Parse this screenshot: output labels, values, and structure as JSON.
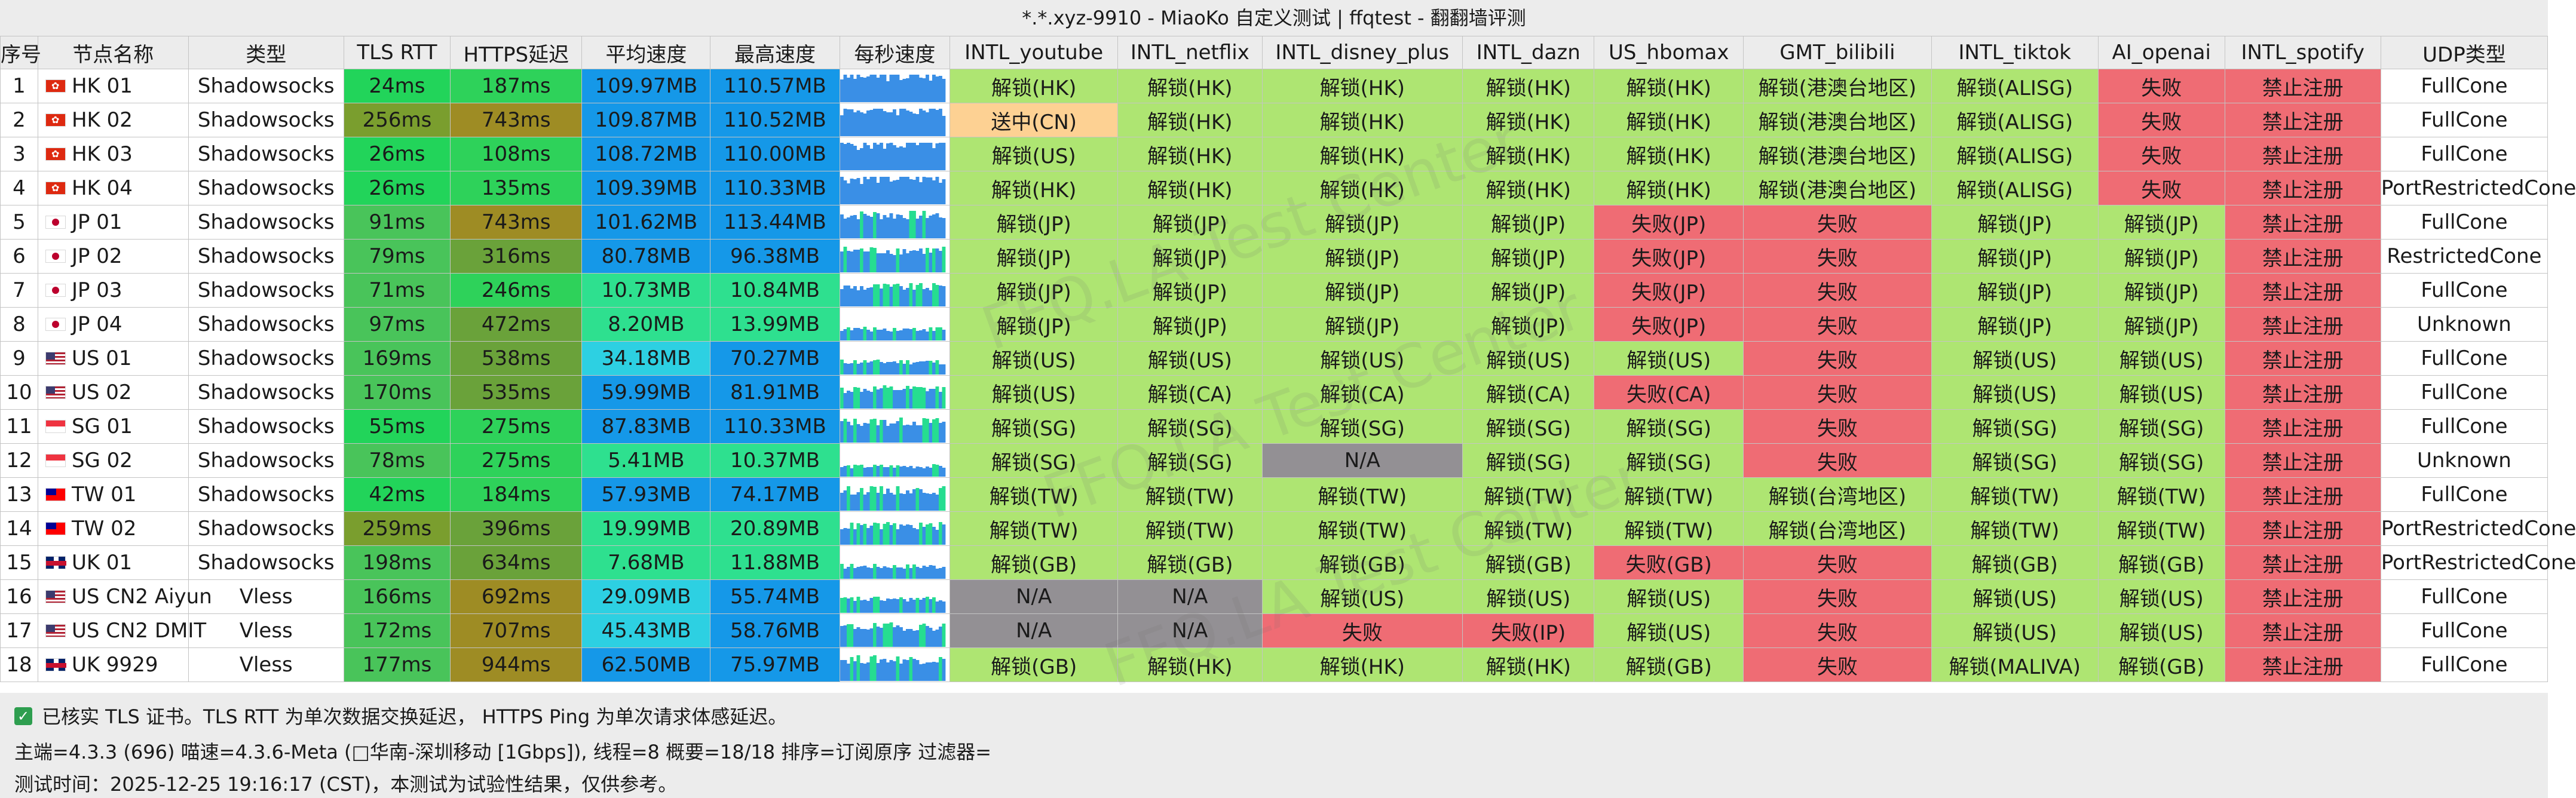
{
  "window": {
    "title": "*.*.xyz-9910 - MiaoKo 自定义测试 | ffqtest - 翻翻墙评测"
  },
  "colors": {
    "rtt_good": "#22d45a",
    "rtt_bad": "#7a9e2e",
    "rtt_mid": "#49c45a",
    "https_good": "#2ed25a",
    "https_mid": "#6aa23a",
    "https_bad": "#9e8c24",
    "avg_high": "#1598e8",
    "avg_mid": "#2dd0e2",
    "avg_low": "#2ee08f",
    "unlock": "#aee572",
    "fail": "#ef6c74",
    "na": "#939094",
    "pending": "#fdd193",
    "udp": "#ffffff",
    "spark": "#3a8fe6",
    "spark_green": "#26dd90"
  },
  "table": {
    "headers": [
      "序号",
      "节点名称",
      "类型",
      "TLS RTT",
      "HTTPS延迟",
      "平均速度",
      "最高速度",
      "每秒速度",
      "INTL_youtube",
      "INTL_netflix",
      "INTL_disney_plus",
      "INTL_dazn",
      "US_hbomax",
      "GMT_bilibili",
      "INTL_tiktok",
      "AI_openai",
      "INTL_spotify",
      "UDP类型"
    ],
    "rows": [
      [
        "1",
        "HK 01",
        "Shadowsocks",
        "24ms",
        "187ms",
        "109.97MB",
        "110.57MB",
        "",
        "解锁(HK)",
        "解锁(HK)",
        "解锁(HK)",
        "解锁(HK)",
        "解锁(HK)",
        "解锁(港澳台地区)",
        "解锁(ALISG)",
        "失败",
        "禁止注册",
        "FullCone"
      ],
      [
        "2",
        "HK 02",
        "Shadowsocks",
        "256ms",
        "743ms",
        "109.87MB",
        "110.52MB",
        "",
        "送中(CN)",
        "解锁(HK)",
        "解锁(HK)",
        "解锁(HK)",
        "解锁(HK)",
        "解锁(港澳台地区)",
        "解锁(ALISG)",
        "失败",
        "禁止注册",
        "FullCone"
      ],
      [
        "3",
        "HK 03",
        "Shadowsocks",
        "26ms",
        "108ms",
        "108.72MB",
        "110.00MB",
        "",
        "解锁(US)",
        "解锁(HK)",
        "解锁(HK)",
        "解锁(HK)",
        "解锁(HK)",
        "解锁(港澳台地区)",
        "解锁(ALISG)",
        "失败",
        "禁止注册",
        "FullCone"
      ],
      [
        "4",
        "HK 04",
        "Shadowsocks",
        "26ms",
        "135ms",
        "109.39MB",
        "110.33MB",
        "",
        "解锁(HK)",
        "解锁(HK)",
        "解锁(HK)",
        "解锁(HK)",
        "解锁(HK)",
        "解锁(港澳台地区)",
        "解锁(ALISG)",
        "失败",
        "禁止注册",
        "PortRestrictedCone"
      ],
      [
        "5",
        "JP 01",
        "Shadowsocks",
        "91ms",
        "743ms",
        "101.62MB",
        "113.44MB",
        "",
        "解锁(JP)",
        "解锁(JP)",
        "解锁(JP)",
        "解锁(JP)",
        "失败(JP)",
        "失败",
        "解锁(JP)",
        "解锁(JP)",
        "禁止注册",
        "FullCone"
      ],
      [
        "6",
        "JP 02",
        "Shadowsocks",
        "79ms",
        "316ms",
        "80.78MB",
        "96.38MB",
        "",
        "解锁(JP)",
        "解锁(JP)",
        "解锁(JP)",
        "解锁(JP)",
        "失败(JP)",
        "失败",
        "解锁(JP)",
        "解锁(JP)",
        "禁止注册",
        "RestrictedCone"
      ],
      [
        "7",
        "JP 03",
        "Shadowsocks",
        "71ms",
        "246ms",
        "10.73MB",
        "10.84MB",
        "",
        "解锁(JP)",
        "解锁(JP)",
        "解锁(JP)",
        "解锁(JP)",
        "失败(JP)",
        "失败",
        "解锁(JP)",
        "解锁(JP)",
        "禁止注册",
        "FullCone"
      ],
      [
        "8",
        "JP 04",
        "Shadowsocks",
        "97ms",
        "472ms",
        "8.20MB",
        "13.99MB",
        "",
        "解锁(JP)",
        "解锁(JP)",
        "解锁(JP)",
        "解锁(JP)",
        "失败(JP)",
        "失败",
        "解锁(JP)",
        "解锁(JP)",
        "禁止注册",
        "Unknown"
      ],
      [
        "9",
        "US 01",
        "Shadowsocks",
        "169ms",
        "538ms",
        "34.18MB",
        "70.27MB",
        "",
        "解锁(US)",
        "解锁(US)",
        "解锁(US)",
        "解锁(US)",
        "解锁(US)",
        "失败",
        "解锁(US)",
        "解锁(US)",
        "禁止注册",
        "FullCone"
      ],
      [
        "10",
        "US 02",
        "Shadowsocks",
        "170ms",
        "535ms",
        "59.99MB",
        "81.91MB",
        "",
        "解锁(US)",
        "解锁(CA)",
        "解锁(CA)",
        "解锁(CA)",
        "失败(CA)",
        "失败",
        "解锁(US)",
        "解锁(US)",
        "禁止注册",
        "FullCone"
      ],
      [
        "11",
        "SG 01",
        "Shadowsocks",
        "55ms",
        "275ms",
        "87.83MB",
        "110.33MB",
        "",
        "解锁(SG)",
        "解锁(SG)",
        "解锁(SG)",
        "解锁(SG)",
        "解锁(SG)",
        "失败",
        "解锁(SG)",
        "解锁(SG)",
        "禁止注册",
        "FullCone"
      ],
      [
        "12",
        "SG 02",
        "Shadowsocks",
        "78ms",
        "275ms",
        "5.41MB",
        "10.37MB",
        "",
        "解锁(SG)",
        "解锁(SG)",
        "N/A",
        "解锁(SG)",
        "解锁(SG)",
        "失败",
        "解锁(SG)",
        "解锁(SG)",
        "禁止注册",
        "Unknown"
      ],
      [
        "13",
        "TW 01",
        "Shadowsocks",
        "42ms",
        "184ms",
        "57.93MB",
        "74.17MB",
        "",
        "解锁(TW)",
        "解锁(TW)",
        "解锁(TW)",
        "解锁(TW)",
        "解锁(TW)",
        "解锁(台湾地区)",
        "解锁(TW)",
        "解锁(TW)",
        "禁止注册",
        "FullCone"
      ],
      [
        "14",
        "TW 02",
        "Shadowsocks",
        "259ms",
        "396ms",
        "19.99MB",
        "20.89MB",
        "",
        "解锁(TW)",
        "解锁(TW)",
        "解锁(TW)",
        "解锁(TW)",
        "解锁(TW)",
        "解锁(台湾地区)",
        "解锁(TW)",
        "解锁(TW)",
        "禁止注册",
        "PortRestrictedCone"
      ],
      [
        "15",
        "UK 01",
        "Shadowsocks",
        "198ms",
        "634ms",
        "7.68MB",
        "11.88MB",
        "",
        "解锁(GB)",
        "解锁(GB)",
        "解锁(GB)",
        "解锁(GB)",
        "失败(GB)",
        "失败",
        "解锁(GB)",
        "解锁(GB)",
        "禁止注册",
        "PortRestrictedCone"
      ],
      [
        "16",
        "US CN2 Aiyun",
        "Vless",
        "166ms",
        "692ms",
        "29.09MB",
        "55.74MB",
        "",
        "N/A",
        "N/A",
        "解锁(US)",
        "解锁(US)",
        "解锁(US)",
        "失败",
        "解锁(US)",
        "解锁(US)",
        "禁止注册",
        "FullCone"
      ],
      [
        "17",
        "US CN2 DMIT",
        "Vless",
        "172ms",
        "707ms",
        "45.43MB",
        "58.76MB",
        "",
        "N/A",
        "N/A",
        "失败",
        "失败(IP)",
        "解锁(US)",
        "失败",
        "解锁(US)",
        "解锁(US)",
        "禁止注册",
        "FullCone"
      ],
      [
        "18",
        "UK 9929",
        "Vless",
        "177ms",
        "944ms",
        "62.50MB",
        "75.97MB",
        "",
        "解锁(GB)",
        "解锁(HK)",
        "解锁(HK)",
        "解锁(HK)",
        "解锁(GB)",
        "失败",
        "解锁(MALIVA)",
        "解锁(GB)",
        "禁止注册",
        "FullCone"
      ]
    ],
    "row_flags": [
      "HK",
      "HK",
      "HK",
      "HK",
      "JP",
      "JP",
      "JP",
      "JP",
      "US",
      "US",
      "SG",
      "SG",
      "TW",
      "TW",
      "GB",
      "US",
      "US",
      "GB"
    ],
    "row_flag_icons": [
      "hong-kong-flag-icon",
      "hong-kong-flag-icon",
      "hong-kong-flag-icon",
      "hong-kong-flag-icon",
      "japan-flag-icon",
      "japan-flag-icon",
      "japan-flag-icon",
      "japan-flag-icon",
      "usa-flag-icon",
      "usa-flag-icon",
      "singapore-flag-icon",
      "singapore-flag-icon",
      "taiwan-flag-icon",
      "taiwan-flag-icon",
      "uk-flag-icon",
      "usa-flag-icon",
      "usa-flag-icon",
      "uk-flag-icon"
    ],
    "rtt_classes": [
      "good",
      "bad",
      "good",
      "good",
      "mid",
      "mid",
      "mid",
      "mid",
      "mid",
      "mid",
      "good",
      "mid",
      "good",
      "bad",
      "mid",
      "mid",
      "mid",
      "mid"
    ],
    "https_classes": [
      "good",
      "bad",
      "good",
      "good",
      "bad",
      "mid",
      "good",
      "mid",
      "mid",
      "mid",
      "good",
      "good",
      "good",
      "mid",
      "mid",
      "bad",
      "bad",
      "bad"
    ],
    "avg_classes": [
      "high",
      "high",
      "high",
      "high",
      "high",
      "high",
      "low",
      "low",
      "mid",
      "high",
      "high",
      "low",
      "high",
      "low",
      "low",
      "mid",
      "mid",
      "high"
    ],
    "max_classes": [
      "high",
      "high",
      "high",
      "high",
      "high",
      "high",
      "low",
      "low",
      "high",
      "high",
      "high",
      "low",
      "high",
      "low",
      "low",
      "high",
      "high",
      "high"
    ]
  },
  "footer": {
    "note_check": "已核实 TLS 证书。TLS RTT 为单次数据交换延迟， HTTPS Ping 为单次请求体感延迟。",
    "note_meta": "主端=4.3.3 (696) 喵速=4.3.6-Meta (□华南-深圳移动 [1Gbps]), 线程=8 概要=18/18 排序=订阅原序 过滤器=",
    "note_time": "测试时间：2025-12-25 19:16:17 (CST)，本测试为试验性结果，仅供参考。",
    "check_icon": "checkbox-checked-icon"
  },
  "watermark": {
    "text": "FFQ.LA Test Center"
  }
}
